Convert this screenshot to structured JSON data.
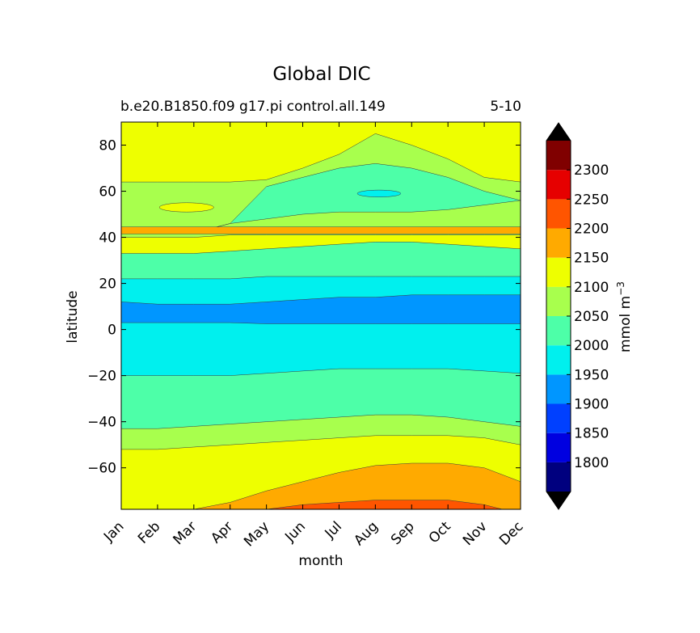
{
  "chart_data": {
    "type": "contourf",
    "title": "Global DIC",
    "subtitle_left": "b.e20.B1850.f09 g17.pi control.all.149",
    "subtitle_right": "5-10",
    "xlabel": "month",
    "ylabel": "latitude",
    "x_ticks": [
      "Jan",
      "Feb",
      "Mar",
      "Apr",
      "May",
      "Jun",
      "Jul",
      "Aug",
      "Sep",
      "Oct",
      "Nov",
      "Dec"
    ],
    "y_ticks": [
      80,
      60,
      40,
      20,
      0,
      -20,
      -40,
      -60
    ],
    "y_tick_labels": [
      "80",
      "60",
      "40",
      "20",
      "0",
      "−20",
      "−40",
      "−60"
    ],
    "ylim": [
      -78,
      90
    ],
    "colorbar": {
      "label": "mmol m",
      "label_exponent": "−3",
      "levels": [
        1750,
        1800,
        1850,
        1900,
        1950,
        2000,
        2050,
        2100,
        2150,
        2200,
        2250,
        2300,
        2350
      ],
      "tick_values": [
        1800,
        1850,
        1900,
        1950,
        2000,
        2050,
        2100,
        2150,
        2200,
        2250,
        2300
      ],
      "tick_labels": [
        "1800",
        "1850",
        "1900",
        "1950",
        "2000",
        "2050",
        "2100",
        "2150",
        "2200",
        "2250",
        "2300"
      ],
      "colors": [
        "#00007f",
        "#0000e0",
        "#0040ff",
        "#0096ff",
        "#00f0ee",
        "#4dffa8",
        "#a8ff4d",
        "#eeff00",
        "#ffaa00",
        "#ff5500",
        "#e60000",
        "#800000"
      ],
      "extend_low_color": "#000000",
      "extend_high_color": "#000000"
    },
    "bands": [
      {
        "level": "2100-2150",
        "color": "#eeff00",
        "lower": [
          -78,
          -78,
          -78,
          -78,
          -78,
          -78,
          -78,
          -78,
          -78,
          -78,
          -78,
          -78
        ],
        "upper": [
          90,
          90,
          90,
          90,
          90,
          90,
          90,
          90,
          90,
          90,
          90,
          90
        ]
      },
      {
        "level": "2050-2100",
        "color": "#a8ff4d",
        "lower": [
          -52,
          -52,
          -51,
          -50,
          -49,
          -48,
          -47,
          -46,
          -46,
          -46,
          -47,
          -50
        ],
        "upper": [
          -42,
          -42,
          -41,
          -40,
          -39,
          -38,
          -37,
          -36,
          -36,
          -37,
          -39,
          -42
        ]
      },
      {
        "level": "2000-2050",
        "color": "#4dffa8",
        "lower": [
          -43,
          -43,
          -42,
          -41,
          -40,
          -39,
          -38,
          -37,
          -37,
          -38,
          -40,
          -42
        ],
        "upper": [
          33,
          33,
          33,
          34,
          35,
          36,
          37,
          38,
          38,
          37,
          36,
          35
        ]
      },
      {
        "level": "1950-2000",
        "color": "#00f0ee",
        "lower": [
          -20,
          -20,
          -20,
          -20,
          -19,
          -18,
          -17,
          -17,
          -17,
          -17,
          -18,
          -19
        ],
        "upper": [
          22,
          22,
          22,
          22,
          23,
          23,
          23,
          23,
          23,
          23,
          23,
          23
        ]
      },
      {
        "level": "1900-1950",
        "color": "#0096ff",
        "lower": [
          3,
          3,
          3,
          3,
          2.5,
          2.5,
          2.5,
          2.5,
          2.5,
          2.5,
          2.5,
          2.5
        ],
        "upper": [
          12,
          11,
          11,
          11,
          12,
          13,
          14,
          14,
          15,
          15,
          15,
          15
        ]
      },
      {
        "level": "2050-2100",
        "color": "#a8ff4d",
        "lower": [
          40,
          40,
          40,
          41,
          41,
          41,
          41,
          41,
          41,
          41,
          41,
          41
        ],
        "upper": [
          64,
          64,
          64,
          64,
          65,
          70,
          76,
          85,
          80,
          74,
          66,
          64
        ]
      },
      {
        "level": "2000-2050",
        "color": "#4dffa8",
        "lower": [
          42,
          42,
          42,
          46,
          48,
          50,
          51,
          51,
          51,
          52,
          54,
          56
        ],
        "upper": [
          42,
          42,
          42,
          46,
          62,
          66,
          70,
          72,
          70,
          66,
          60,
          56
        ]
      },
      {
        "level": "2150-2200",
        "color": "#ffaa00",
        "lower": [
          -80,
          -80,
          -80,
          -80,
          -80,
          -80,
          -80,
          -80,
          -80,
          -80,
          -80,
          -80
        ],
        "upper": [
          -79,
          -79,
          -78,
          -75,
          -70,
          -66,
          -62,
          -59,
          -58,
          -58,
          -60,
          -66
        ]
      },
      {
        "level": "2200-2250",
        "color": "#ff5500",
        "lower": [
          -80,
          -80,
          -80,
          -80,
          -80,
          -80,
          -80,
          -80,
          -80,
          -80,
          -80,
          -80
        ],
        "upper": [
          -80,
          -80,
          -80,
          -79,
          -78,
          -76,
          -75,
          -74,
          -74,
          -74,
          -76,
          -80
        ]
      }
    ],
    "ribbon_2150_2200": {
      "latitudes": [
        44.5,
        41.5
      ],
      "color": "#ffaa00"
    },
    "small_patches": [
      {
        "level": "2100-2150",
        "color": "#eeff00",
        "month_pos": 1.8,
        "lat": 53,
        "width_months": 1.5,
        "height_lat": 4
      },
      {
        "level": "1950-2000",
        "color": "#00f0ee",
        "month_pos": 7.1,
        "lat": 59,
        "width_months": 1.2,
        "height_lat": 3
      }
    ]
  }
}
